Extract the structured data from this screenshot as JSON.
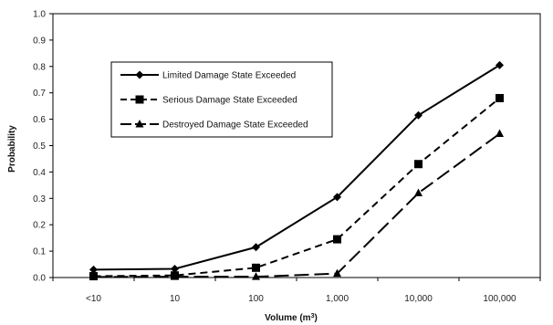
{
  "chart_data": {
    "type": "line",
    "categories": [
      "<10",
      "10",
      "100",
      "1,000",
      "10,000",
      "100,000"
    ],
    "xlabel": "Volume (m³)",
    "ylabel": "Probability",
    "ylim": [
      0,
      1.0
    ],
    "yticks": [
      "0.0",
      "0.1",
      "0.2",
      "0.3",
      "0.4",
      "0.5",
      "0.6",
      "0.7",
      "0.8",
      "0.9",
      "1.0"
    ],
    "grid": false,
    "legend_position": "upper-left inside plot",
    "series": [
      {
        "name": "Limited Damage State Exceeded",
        "values": [
          0.03,
          0.033,
          0.115,
          0.305,
          0.615,
          0.805
        ],
        "marker": "diamond",
        "line_style": "solid",
        "color": "#000000"
      },
      {
        "name": "Serious Damage State Exceeded",
        "values": [
          0.005,
          0.008,
          0.037,
          0.145,
          0.43,
          0.68
        ],
        "marker": "square",
        "line_style": "dashed",
        "color": "#000000"
      },
      {
        "name": "Destroyed Damage State Exceeded",
        "values": [
          0.002,
          0.003,
          0.003,
          0.015,
          0.32,
          0.545
        ],
        "marker": "triangle",
        "line_style": "long-dash",
        "color": "#000000"
      }
    ]
  }
}
